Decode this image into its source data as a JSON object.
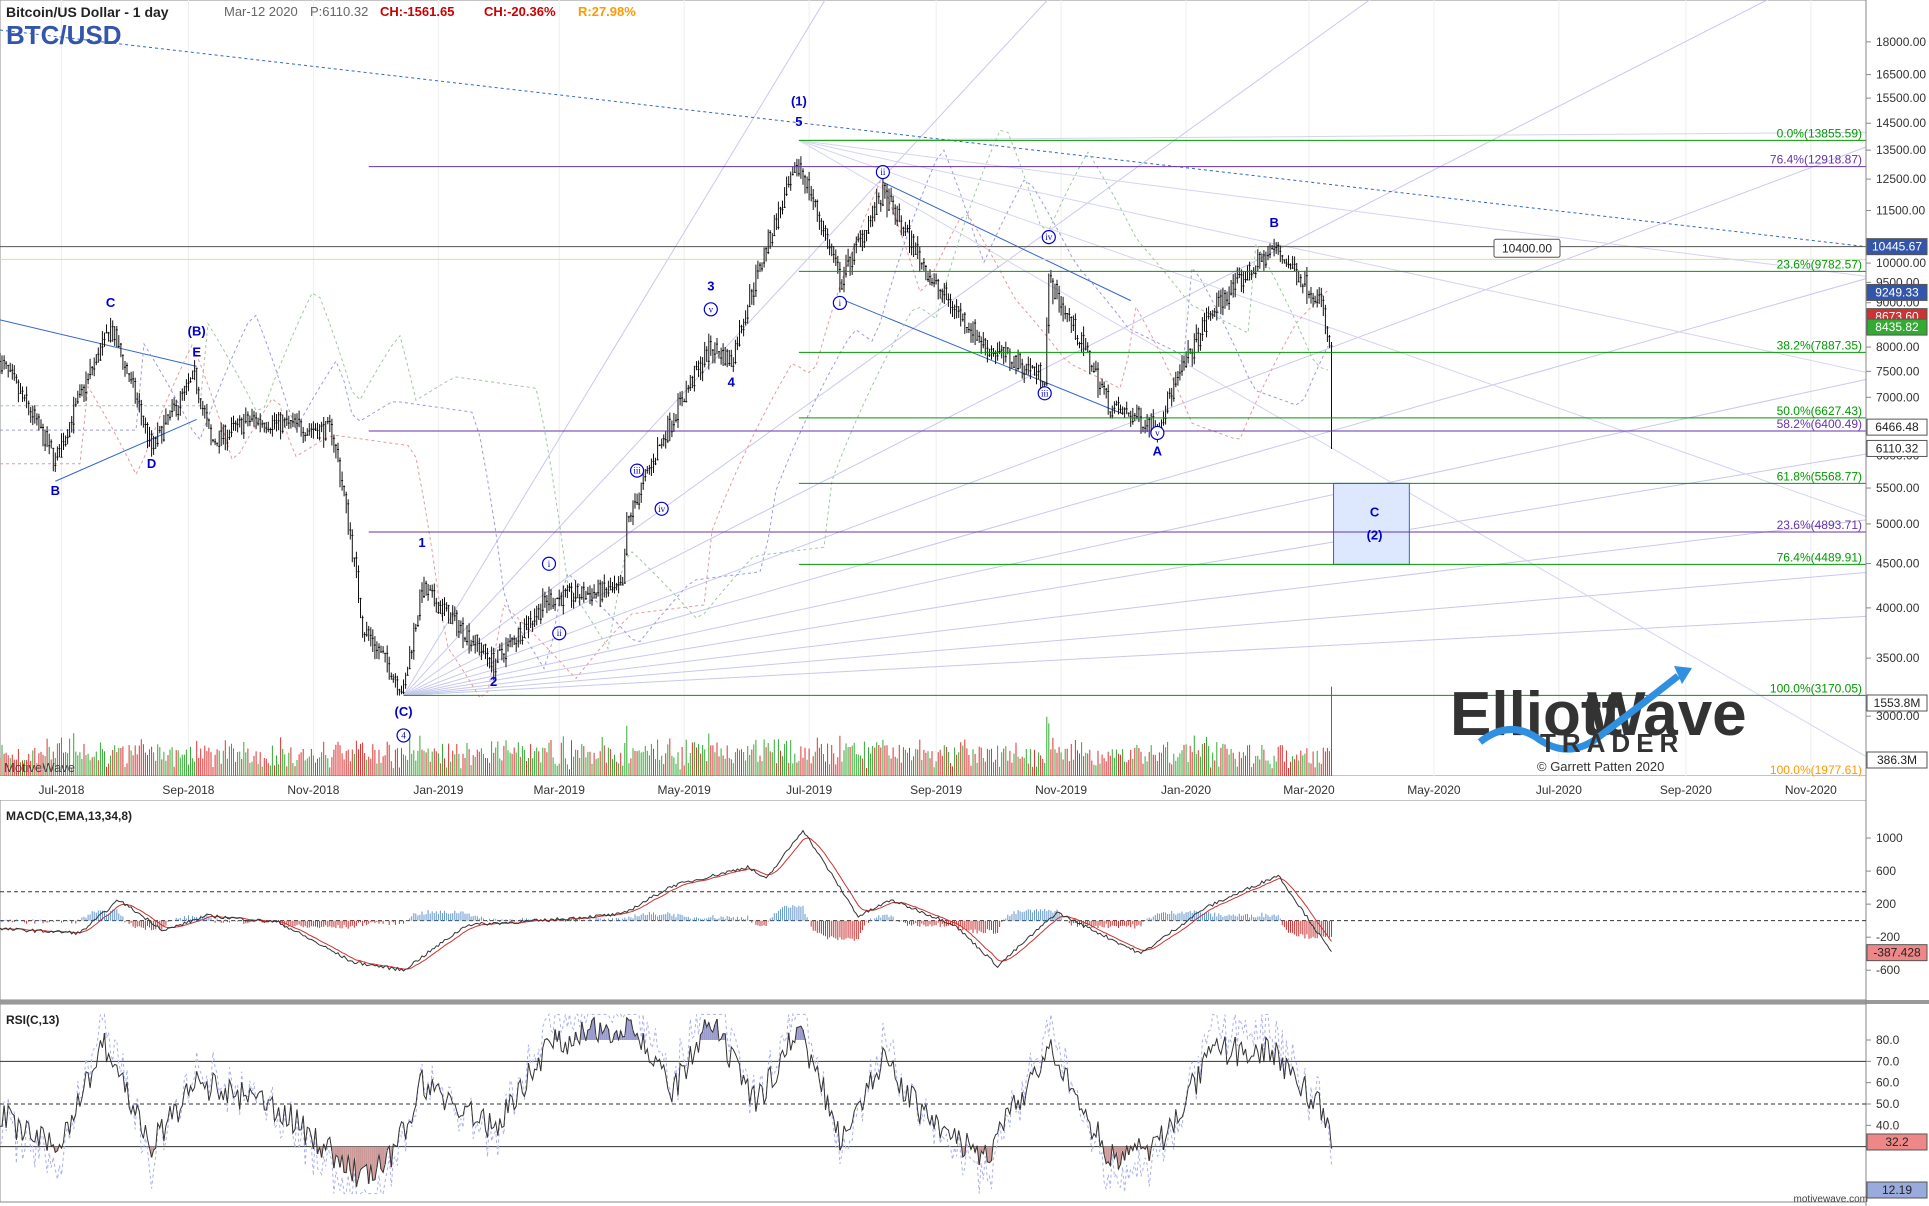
{
  "header": {
    "title": "Bitcoin/US Dollar - 1 day",
    "date": "Mar-12 2020",
    "price": "P:6110.32",
    "change_abs": "CH:-1561.65",
    "change_pct": "CH:-20.36%",
    "range_pct": "R:27.98%",
    "symbol": "BTC/USD"
  },
  "watermark": {
    "source": "MotiveWave",
    "site": "motivewave.com",
    "logo_elliott": "Elliott",
    "logo_wave": "Wave",
    "logo_trader": "TRADER",
    "copyright": "© Garrett Patten 2020"
  },
  "colors": {
    "up": "#000000",
    "wave_label": "#0000cc",
    "fib_green": "#009900",
    "fib_purple": "#6633aa",
    "macd_line": "#333333",
    "signal_line": "#cc3333",
    "hist_pos": "#6699cc",
    "hist_neg": "#cc3333",
    "vol_up": "#33aa33",
    "vol_down": "#dd3333",
    "target_box": "#dde8ff"
  },
  "chart_data": [
    {
      "type": "candlestick",
      "title": "Bitcoin/US Dollar - 1 day",
      "scale": "log",
      "ylim": [
        2600,
        19800
      ],
      "x_ticks": [
        "Jul-2018",
        "Sep-2018",
        "Nov-2018",
        "Jan-2019",
        "Mar-2019",
        "May-2019",
        "Jul-2019",
        "Sep-2019",
        "Nov-2019",
        "Jan-2020",
        "Mar-2020",
        "May-2020",
        "Jul-2020",
        "Sep-2020",
        "Nov-2020"
      ],
      "y_ticks": [
        3000,
        3500,
        4000,
        4500,
        5000,
        5500,
        6000,
        6500,
        7000,
        7500,
        8000,
        8500,
        9000,
        9500,
        10000,
        11500,
        12500,
        13500,
        14500,
        15500,
        16500,
        18000
      ],
      "price_path": [
        {
          "date": "2018-06-01",
          "price": 7700
        },
        {
          "date": "2018-06-28",
          "price": 5900
        },
        {
          "date": "2018-07-25",
          "price": 8400
        },
        {
          "date": "2018-08-14",
          "price": 6100
        },
        {
          "date": "2018-09-04",
          "price": 7400
        },
        {
          "date": "2018-09-12",
          "price": 6200
        },
        {
          "date": "2018-10-01",
          "price": 6600
        },
        {
          "date": "2018-11-10",
          "price": 6400
        },
        {
          "date": "2018-11-25",
          "price": 3800
        },
        {
          "date": "2018-12-15",
          "price": 3200
        },
        {
          "date": "2018-12-24",
          "price": 4200
        },
        {
          "date": "2019-01-28",
          "price": 3450
        },
        {
          "date": "2019-02-24",
          "price": 4100
        },
        {
          "date": "2019-04-01",
          "price": 4200
        },
        {
          "date": "2019-04-03",
          "price": 5000
        },
        {
          "date": "2019-05-14",
          "price": 8000
        },
        {
          "date": "2019-05-24",
          "price": 7700
        },
        {
          "date": "2019-06-26",
          "price": 13000
        },
        {
          "date": "2019-07-16",
          "price": 9500
        },
        {
          "date": "2019-08-06",
          "price": 12000
        },
        {
          "date": "2019-08-30",
          "price": 9500
        },
        {
          "date": "2019-09-25",
          "price": 8000
        },
        {
          "date": "2019-10-24",
          "price": 7400
        },
        {
          "date": "2019-10-26",
          "price": 9500
        },
        {
          "date": "2019-11-25",
          "price": 6800
        },
        {
          "date": "2019-12-18",
          "price": 6500
        },
        {
          "date": "2020-01-15",
          "price": 8900
        },
        {
          "date": "2020-02-13",
          "price": 10400
        },
        {
          "date": "2020-03-07",
          "price": 9000
        },
        {
          "date": "2020-03-11",
          "price": 7900
        },
        {
          "date": "2020-03-12",
          "price": 6110.32
        }
      ],
      "price_labels": [
        {
          "value": 10445.67,
          "text": "10445.67"
        },
        {
          "value": 9249.33,
          "text": "9249.33"
        },
        {
          "value": 8673.6,
          "text": "8673.60"
        },
        {
          "value": 8435.82,
          "text": "8435.82"
        },
        {
          "value": 6466.48,
          "text": "6466.48"
        },
        {
          "value": 6110.32,
          "text": "6110.32"
        }
      ],
      "horizontal_levels": [
        {
          "value": 10400,
          "text": "10400.00"
        }
      ],
      "fib_levels": [
        {
          "text": "0.0%(13855.59)",
          "value": 13855.59,
          "color": "green"
        },
        {
          "text": "76.4%(12918.87)",
          "value": 12918.87,
          "color": "purple"
        },
        {
          "text": "23.6%(9782.57)",
          "value": 9782.57,
          "color": "green"
        },
        {
          "text": "38.2%(7887.35)",
          "value": 7887.35,
          "color": "green"
        },
        {
          "text": "50.0%(6627.43)",
          "value": 6627.43,
          "color": "green"
        },
        {
          "text": "58.2%(6400.49)",
          "value": 6400.49,
          "color": "purple"
        },
        {
          "text": "61.8%(5568.77)",
          "value": 5568.77,
          "color": "green"
        },
        {
          "text": "23.6%(4893.71)",
          "value": 4893.71,
          "color": "purple"
        },
        {
          "text": "76.4%(4489.91)",
          "value": 4489.91,
          "color": "green"
        },
        {
          "text": "100.0%(3170.05)",
          "value": 3170.05,
          "color": "green"
        },
        {
          "text": "100.0%(1977.61)",
          "value": 1977.61,
          "color": "orange"
        }
      ],
      "wave_labels": [
        {
          "text": "C",
          "date": "2018-07-25",
          "price": 8900
        },
        {
          "text": "B",
          "date": "2018-06-28",
          "price": 5400
        },
        {
          "text": "(B)",
          "date": "2018-09-05",
          "price": 8250
        },
        {
          "text": "E",
          "date": "2018-09-05",
          "price": 7800
        },
        {
          "text": "D",
          "date": "2018-08-14",
          "price": 5800
        },
        {
          "text": "(C)",
          "date": "2018-12-15",
          "price": 3000
        },
        {
          "text": "4",
          "date": "2018-12-15",
          "price": 2820,
          "circled": true
        },
        {
          "text": "1",
          "date": "2018-12-24",
          "price": 4700
        },
        {
          "text": "2",
          "date": "2019-01-28",
          "price": 3250
        },
        {
          "text": "i",
          "date": "2019-02-24",
          "price": 4450,
          "circled": true
        },
        {
          "text": "ii",
          "date": "2019-03-01",
          "price": 3700,
          "circled": true
        },
        {
          "text": "iii",
          "date": "2019-04-08",
          "price": 5700,
          "circled": true
        },
        {
          "text": "iv",
          "date": "2019-04-20",
          "price": 5150,
          "circled": true
        },
        {
          "text": "v",
          "date": "2019-05-14",
          "price": 8750,
          "circled": true
        },
        {
          "text": "3",
          "date": "2019-05-14",
          "price": 9300
        },
        {
          "text": "4",
          "date": "2019-05-24",
          "price": 7200
        },
        {
          "text": "(1)",
          "date": "2019-06-26",
          "price": 15200
        },
        {
          "text": "5",
          "date": "2019-06-26",
          "price": 14400
        },
        {
          "text": "i",
          "date": "2019-07-16",
          "price": 8900,
          "circled": true
        },
        {
          "text": "ii",
          "date": "2019-08-06",
          "price": 12600,
          "circled": true
        },
        {
          "text": "iii",
          "date": "2019-10-24",
          "price": 7000,
          "circled": true
        },
        {
          "text": "iv",
          "date": "2019-10-26",
          "price": 10600,
          "circled": true
        },
        {
          "text": "v",
          "date": "2019-12-18",
          "price": 6300,
          "circled": true
        },
        {
          "text": "A",
          "date": "2019-12-18",
          "price": 6000
        },
        {
          "text": "B",
          "date": "2020-02-13",
          "price": 11000
        },
        {
          "text": "C",
          "date": "2020-04-02",
          "price": 5100
        },
        {
          "text": "(2)",
          "date": "2020-04-02",
          "price": 4800
        }
      ],
      "target_zone": {
        "from_date": "2020-03-13",
        "to_date": "2020-04-19",
        "low": 4489.91,
        "high": 5568.77
      },
      "volume_labels": [
        "1553.8M",
        "386.3M"
      ]
    },
    {
      "type": "line",
      "title": "MACD(C,EMA,13,34,8)",
      "ylim": [
        -900,
        1400
      ],
      "y_ticks": [
        1000,
        600,
        200,
        -200,
        -600
      ],
      "reference_lines": [
        350,
        0
      ],
      "last_value_label": "-387.428",
      "macd_path": [
        {
          "date": "2018-06-01",
          "value": -100
        },
        {
          "date": "2018-07-10",
          "value": -150
        },
        {
          "date": "2018-07-29",
          "value": 250
        },
        {
          "date": "2018-08-20",
          "value": -120
        },
        {
          "date": "2018-09-10",
          "value": 60
        },
        {
          "date": "2018-10-15",
          "value": -20
        },
        {
          "date": "2018-11-20",
          "value": -500
        },
        {
          "date": "2018-12-15",
          "value": -600
        },
        {
          "date": "2019-01-15",
          "value": -50
        },
        {
          "date": "2019-02-20",
          "value": 0
        },
        {
          "date": "2019-04-01",
          "value": 80
        },
        {
          "date": "2019-04-25",
          "value": 420
        },
        {
          "date": "2019-06-01",
          "value": 650
        },
        {
          "date": "2019-06-10",
          "value": 500
        },
        {
          "date": "2019-06-28",
          "value": 1100
        },
        {
          "date": "2019-07-25",
          "value": 50
        },
        {
          "date": "2019-08-10",
          "value": 250
        },
        {
          "date": "2019-09-10",
          "value": -50
        },
        {
          "date": "2019-10-01",
          "value": -550
        },
        {
          "date": "2019-10-30",
          "value": 100
        },
        {
          "date": "2019-12-10",
          "value": -400
        },
        {
          "date": "2020-01-10",
          "value": 150
        },
        {
          "date": "2020-02-15",
          "value": 550
        },
        {
          "date": "2020-03-12",
          "value": -387.428
        }
      ]
    },
    {
      "type": "line",
      "title": "RSI(C,13)",
      "ylim": [
        5,
        95
      ],
      "y_ticks": [
        80.0,
        70.0,
        60.0,
        50.0,
        40.0,
        30.0
      ],
      "reference_lines": [
        70,
        50,
        30
      ],
      "last_value_labels": [
        "32.2",
        "12.19"
      ],
      "rsi_path": [
        {
          "date": "2018-06-01",
          "value": 45
        },
        {
          "date": "2018-06-28",
          "value": 28
        },
        {
          "date": "2018-07-22",
          "value": 78
        },
        {
          "date": "2018-08-14",
          "value": 30
        },
        {
          "date": "2018-09-05",
          "value": 60
        },
        {
          "date": "2018-10-15",
          "value": 48
        },
        {
          "date": "2018-11-25",
          "value": 15
        },
        {
          "date": "2018-12-10",
          "value": 25
        },
        {
          "date": "2018-12-24",
          "value": 60
        },
        {
          "date": "2019-01-28",
          "value": 38
        },
        {
          "date": "2019-02-24",
          "value": 78
        },
        {
          "date": "2019-04-05",
          "value": 88
        },
        {
          "date": "2019-04-25",
          "value": 55
        },
        {
          "date": "2019-05-14",
          "value": 88
        },
        {
          "date": "2019-06-05",
          "value": 50
        },
        {
          "date": "2019-06-26",
          "value": 86
        },
        {
          "date": "2019-07-16",
          "value": 35
        },
        {
          "date": "2019-08-06",
          "value": 70
        },
        {
          "date": "2019-08-30",
          "value": 40
        },
        {
          "date": "2019-09-25",
          "value": 25
        },
        {
          "date": "2019-10-26",
          "value": 75
        },
        {
          "date": "2019-11-25",
          "value": 25
        },
        {
          "date": "2019-12-18",
          "value": 30
        },
        {
          "date": "2020-01-15",
          "value": 75
        },
        {
          "date": "2020-02-13",
          "value": 74
        },
        {
          "date": "2020-03-07",
          "value": 48
        },
        {
          "date": "2020-03-12",
          "value": 32.2
        }
      ]
    }
  ]
}
